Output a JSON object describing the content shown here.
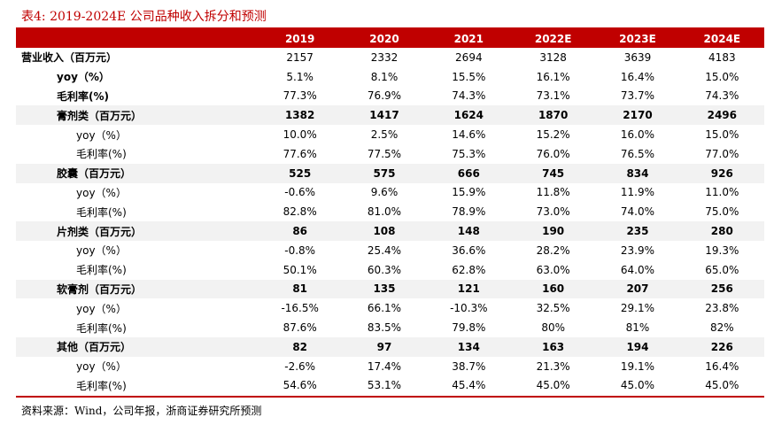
{
  "caption": "表4:   2019-2024E 公司品种收入拆分和预测",
  "header": [
    "",
    "2019",
    "2020",
    "2021",
    "2022E",
    "2023E",
    "2024E"
  ],
  "rows": [
    {
      "label": "营业收入（百万元）",
      "values": [
        "2157",
        "2332",
        "2694",
        "3128",
        "3639",
        "4183"
      ],
      "gray": false,
      "bold": false,
      "indent": 0,
      "label_bold": true
    },
    {
      "label": "yoy（%）",
      "values": [
        "5.1%",
        "8.1%",
        "15.5%",
        "16.1%",
        "16.4%",
        "15.0%"
      ],
      "gray": false,
      "bold": false,
      "indent": 1,
      "label_bold": true
    },
    {
      "label": "毛利率(%)",
      "values": [
        "77.3%",
        "76.9%",
        "74.3%",
        "73.1%",
        "73.7%",
        "74.3%"
      ],
      "gray": false,
      "bold": false,
      "indent": 1,
      "label_bold": true
    },
    {
      "label": "膏剂类（百万元）",
      "values": [
        "1382",
        "1417",
        "1624",
        "1870",
        "2170",
        "2496"
      ],
      "gray": true,
      "bold": true,
      "indent": 1,
      "label_bold": true
    },
    {
      "label": "yoy（%）",
      "values": [
        "10.0%",
        "2.5%",
        "14.6%",
        "15.2%",
        "16.0%",
        "15.0%"
      ],
      "gray": false,
      "bold": false,
      "indent": 2,
      "label_bold": false
    },
    {
      "label": "毛利率(%)",
      "values": [
        "77.6%",
        "77.5%",
        "75.3%",
        "76.0%",
        "76.5%",
        "77.0%"
      ],
      "gray": false,
      "bold": false,
      "indent": 2,
      "label_bold": false
    },
    {
      "label": "胶囊（百万元）",
      "values": [
        "525",
        "575",
        "666",
        "745",
        "834",
        "926"
      ],
      "gray": true,
      "bold": true,
      "indent": 1,
      "label_bold": true
    },
    {
      "label": "yoy（%）",
      "values": [
        "-0.6%",
        "9.6%",
        "15.9%",
        "11.8%",
        "11.9%",
        "11.0%"
      ],
      "gray": false,
      "bold": false,
      "indent": 2,
      "label_bold": false
    },
    {
      "label": "毛利率(%)",
      "values": [
        "82.8%",
        "81.0%",
        "78.9%",
        "73.0%",
        "74.0%",
        "75.0%"
      ],
      "gray": false,
      "bold": false,
      "indent": 2,
      "label_bold": false
    },
    {
      "label": "片剂类（百万元）",
      "values": [
        "86",
        "108",
        "148",
        "190",
        "235",
        "280"
      ],
      "gray": true,
      "bold": true,
      "indent": 1,
      "label_bold": true
    },
    {
      "label": "yoy（%）",
      "values": [
        "-0.8%",
        "25.4%",
        "36.6%",
        "28.2%",
        "23.9%",
        "19.3%"
      ],
      "gray": false,
      "bold": false,
      "indent": 2,
      "label_bold": false
    },
    {
      "label": "毛利率(%)",
      "values": [
        "50.1%",
        "60.3%",
        "62.8%",
        "63.0%",
        "64.0%",
        "65.0%"
      ],
      "gray": false,
      "bold": false,
      "indent": 2,
      "label_bold": false
    },
    {
      "label": "软膏剂（百万元）",
      "values": [
        "81",
        "135",
        "121",
        "160",
        "207",
        "256"
      ],
      "gray": true,
      "bold": true,
      "indent": 1,
      "label_bold": true
    },
    {
      "label": "yoy（%）",
      "values": [
        "-16.5%",
        "66.1%",
        "-10.3%",
        "32.5%",
        "29.1%",
        "23.8%"
      ],
      "gray": false,
      "bold": false,
      "indent": 2,
      "label_bold": false
    },
    {
      "label": "毛利率(%)",
      "values": [
        "87.6%",
        "83.5%",
        "79.8%",
        "80%",
        "81%",
        "82%"
      ],
      "gray": false,
      "bold": false,
      "indent": 2,
      "label_bold": false
    },
    {
      "label": "其他（百万元）",
      "values": [
        "82",
        "97",
        "134",
        "163",
        "194",
        "226"
      ],
      "gray": true,
      "bold": true,
      "indent": 1,
      "label_bold": true
    },
    {
      "label": "yoy（%）",
      "values": [
        "-2.6%",
        "17.4%",
        "38.7%",
        "21.3%",
        "19.1%",
        "16.4%"
      ],
      "gray": false,
      "bold": false,
      "indent": 2,
      "label_bold": false
    },
    {
      "label": "毛利率(%)",
      "values": [
        "54.6%",
        "53.1%",
        "45.4%",
        "45.0%",
        "45.0%",
        "45.0%"
      ],
      "gray": false,
      "bold": false,
      "indent": 2,
      "label_bold": false
    }
  ],
  "source": "资料来源：Wind，公司年报，浙商证券研究所预测",
  "colors": {
    "accent": "#c00000",
    "band": "#f2f2f2"
  }
}
